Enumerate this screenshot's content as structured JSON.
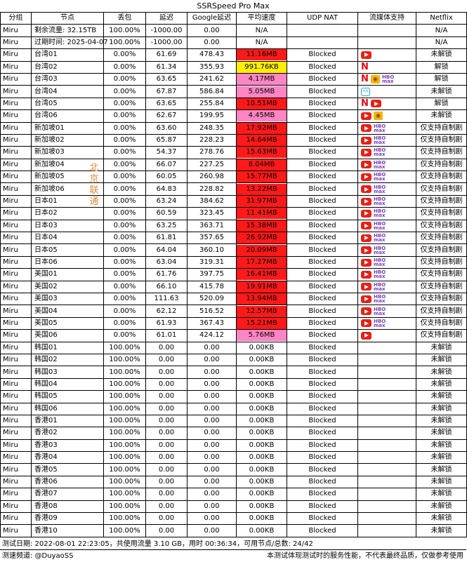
{
  "title": "SSRSpeed Pro Max",
  "headers": [
    "分组",
    "节点",
    "丢包",
    "延迟",
    "Google延迟",
    "平均速度",
    "UDP NAT",
    "流媒体支持",
    "Netflix"
  ],
  "isp_label": "北京联通",
  "colors": {
    "red": "#ff1a1a",
    "pink": "#ff85c4",
    "yellow": "#ffee00",
    "white": "#ffffff"
  },
  "rows": [
    {
      "group": "Miru",
      "node": "剩余流量: 32.15TB",
      "loss": "100.00%",
      "delay": "-1000.00",
      "google": "0.00",
      "speed": "N/A",
      "speed_color": "white",
      "udp": "",
      "media": [],
      "netflix": "N/A"
    },
    {
      "group": "Miru",
      "node": "过期时间: 2025-04-07",
      "loss": "100.00%",
      "delay": "-1000.00",
      "google": "0.00",
      "speed": "N/A",
      "speed_color": "white",
      "udp": "",
      "media": [],
      "netflix": "N/A"
    },
    {
      "group": "Miru",
      "node": "台湾01",
      "loss": "0.00%",
      "delay": "61.69",
      "google": "478.43",
      "speed": "11.16MB",
      "speed_color": "red",
      "udp": "Blocked",
      "media": [
        "youtube-icon"
      ],
      "netflix": "未解锁"
    },
    {
      "group": "Miru",
      "node": "台湾02",
      "loss": "0.00%",
      "delay": "61.34",
      "google": "355.93",
      "speed": "991.76KB",
      "speed_color": "yellow",
      "udp": "Blocked",
      "media": [
        "netflix-icon"
      ],
      "netflix": "解锁"
    },
    {
      "group": "Miru",
      "node": "台湾03",
      "loss": "0.00%",
      "delay": "63.65",
      "google": "241.62",
      "speed": "4.17MB",
      "speed_color": "pink",
      "udp": "Blocked",
      "media": [
        "netflix-icon",
        "abema-icon",
        "hbo-max-icon"
      ],
      "netflix": "解锁"
    },
    {
      "group": "Miru",
      "node": "台湾04",
      "loss": "0.00%",
      "delay": "67.87",
      "google": "586.84",
      "speed": "5.05MB",
      "speed_color": "pink",
      "udp": "Blocked",
      "media": [
        "bilibili-icon"
      ],
      "netflix": "未解锁"
    },
    {
      "group": "Miru",
      "node": "台湾05",
      "loss": "0.00%",
      "delay": "63.65",
      "google": "255.84",
      "speed": "10.51MB",
      "speed_color": "red",
      "udp": "Blocked",
      "media": [
        "netflix-icon",
        "youtube-icon"
      ],
      "netflix": "解锁"
    },
    {
      "group": "Miru",
      "node": "台湾06",
      "loss": "0.00%",
      "delay": "62.67",
      "google": "199.95",
      "speed": "4.45MB",
      "speed_color": "pink",
      "udp": "Blocked",
      "media": [
        "youtube-icon",
        "abema-icon"
      ],
      "netflix": "未解锁"
    },
    {
      "group": "Miru",
      "node": "新加坡01",
      "loss": "0.00%",
      "delay": "63.60",
      "google": "248.35",
      "speed": "17.92MB",
      "speed_color": "red",
      "udp": "Blocked",
      "media": [
        "youtube-icon",
        "hbo-max-icon"
      ],
      "netflix": "仅支持自制剧"
    },
    {
      "group": "Miru",
      "node": "新加坡02",
      "loss": "0.00%",
      "delay": "65.87",
      "google": "228.23",
      "speed": "14.64MB",
      "speed_color": "red",
      "udp": "Blocked",
      "media": [
        "youtube-icon",
        "hbo-max-icon"
      ],
      "netflix": "仅支持自制剧"
    },
    {
      "group": "Miru",
      "node": "新加坡03",
      "loss": "0.00%",
      "delay": "54.37",
      "google": "278.76",
      "speed": "15.63MB",
      "speed_color": "red",
      "udp": "Blocked",
      "media": [
        "youtube-icon",
        "hbo-max-icon"
      ],
      "netflix": "仅支持自制剧"
    },
    {
      "group": "Miru",
      "node": "新加坡04",
      "loss": "0.00%",
      "delay": "66.07",
      "google": "227.25",
      "speed": "8.04MB",
      "speed_color": "red",
      "udp": "Blocked",
      "media": [
        "youtube-icon",
        "hbo-max-icon"
      ],
      "netflix": "仅支持自制剧"
    },
    {
      "group": "Miru",
      "node": "新加坡05",
      "loss": "0.00%",
      "delay": "60.05",
      "google": "260.98",
      "speed": "15.77MB",
      "speed_color": "red",
      "udp": "Blocked",
      "media": [
        "youtube-icon",
        "hbo-max-icon"
      ],
      "netflix": "仅支持自制剧"
    },
    {
      "group": "Miru",
      "node": "新加坡06",
      "loss": "0.00%",
      "delay": "64.83",
      "google": "228.82",
      "speed": "13.22MB",
      "speed_color": "red",
      "udp": "Blocked",
      "media": [
        "youtube-icon",
        "hbo-max-icon"
      ],
      "netflix": "仅支持自制剧"
    },
    {
      "group": "Miru",
      "node": "日本01",
      "loss": "0.00%",
      "delay": "63.24",
      "google": "384.62",
      "speed": "31.97MB",
      "speed_color": "red",
      "udp": "Blocked",
      "media": [
        "youtube-icon",
        "hbo-max-icon"
      ],
      "netflix": "仅支持自制剧"
    },
    {
      "group": "Miru",
      "node": "日本02",
      "loss": "0.00%",
      "delay": "60.59",
      "google": "323.45",
      "speed": "11.41MB",
      "speed_color": "red",
      "udp": "Blocked",
      "media": [
        "youtube-icon",
        "hbo-max-icon"
      ],
      "netflix": "仅支持自制剧"
    },
    {
      "group": "Miru",
      "node": "日本03",
      "loss": "0.00%",
      "delay": "63.25",
      "google": "363.71",
      "speed": "15.38MB",
      "speed_color": "red",
      "udp": "Blocked",
      "media": [
        "youtube-icon",
        "hbo-max-icon"
      ],
      "netflix": "仅支持自制剧"
    },
    {
      "group": "Miru",
      "node": "日本04",
      "loss": "0.00%",
      "delay": "61.81",
      "google": "357.65",
      "speed": "26.92MB",
      "speed_color": "red",
      "udp": "Blocked",
      "media": [
        "youtube-icon",
        "hbo-max-icon"
      ],
      "netflix": "仅支持自制剧"
    },
    {
      "group": "Miru",
      "node": "日本05",
      "loss": "0.00%",
      "delay": "64.04",
      "google": "360.10",
      "speed": "20.09MB",
      "speed_color": "red",
      "udp": "Blocked",
      "media": [
        "youtube-icon",
        "hbo-max-icon"
      ],
      "netflix": "仅支持自制剧"
    },
    {
      "group": "Miru",
      "node": "日本06",
      "loss": "0.00%",
      "delay": "63.04",
      "google": "319.31",
      "speed": "17.27MB",
      "speed_color": "red",
      "udp": "Blocked",
      "media": [
        "youtube-icon",
        "hbo-max-icon"
      ],
      "netflix": "仅支持自制剧"
    },
    {
      "group": "Miru",
      "node": "美国01",
      "loss": "0.00%",
      "delay": "61.76",
      "google": "397.75",
      "speed": "16.41MB",
      "speed_color": "red",
      "udp": "Blocked",
      "media": [
        "youtube-icon",
        "hbo-max-icon"
      ],
      "netflix": "仅支持自制剧"
    },
    {
      "group": "Miru",
      "node": "美国02",
      "loss": "0.00%",
      "delay": "66.10",
      "google": "415.78",
      "speed": "19.91MB",
      "speed_color": "red",
      "udp": "Blocked",
      "media": [
        "youtube-icon",
        "hbo-max-icon"
      ],
      "netflix": "仅支持自制剧"
    },
    {
      "group": "Miru",
      "node": "美国03",
      "loss": "0.00%",
      "delay": "111.63",
      "google": "520.09",
      "speed": "13.94MB",
      "speed_color": "red",
      "udp": "Blocked",
      "media": [
        "youtube-icon",
        "hbo-max-icon"
      ],
      "netflix": "仅支持自制剧"
    },
    {
      "group": "Miru",
      "node": "美国04",
      "loss": "0.00%",
      "delay": "62.12",
      "google": "516.52",
      "speed": "12.57MB",
      "speed_color": "red",
      "udp": "Blocked",
      "media": [
        "youtube-icon",
        "hbo-max-icon"
      ],
      "netflix": "仅支持自制剧"
    },
    {
      "group": "Miru",
      "node": "美国05",
      "loss": "0.00%",
      "delay": "61.93",
      "google": "367.43",
      "speed": "15.21MB",
      "speed_color": "red",
      "udp": "Blocked",
      "media": [
        "youtube-icon",
        "hbo-max-icon"
      ],
      "netflix": "仅支持自制剧"
    },
    {
      "group": "Miru",
      "node": "美国06",
      "loss": "0.00%",
      "delay": "61.01",
      "google": "424.12",
      "speed": "5.76MB",
      "speed_color": "pink",
      "udp": "Blocked",
      "media": [
        "youtube-icon"
      ],
      "netflix": "仅支持自制剧"
    },
    {
      "group": "Miru",
      "node": "韩国01",
      "loss": "100.00%",
      "delay": "0.00",
      "google": "0.00",
      "speed": "0.00KB",
      "speed_color": "white",
      "udp": "Blocked",
      "media": [],
      "netflix": "未解锁"
    },
    {
      "group": "Miru",
      "node": "韩国02",
      "loss": "100.00%",
      "delay": "0.00",
      "google": "0.00",
      "speed": "0.00KB",
      "speed_color": "white",
      "udp": "Blocked",
      "media": [],
      "netflix": "未解锁"
    },
    {
      "group": "Miru",
      "node": "韩国03",
      "loss": "100.00%",
      "delay": "0.00",
      "google": "0.00",
      "speed": "0.00KB",
      "speed_color": "white",
      "udp": "Blocked",
      "media": [],
      "netflix": "未解锁"
    },
    {
      "group": "Miru",
      "node": "韩国04",
      "loss": "100.00%",
      "delay": "0.00",
      "google": "0.00",
      "speed": "0.00KB",
      "speed_color": "white",
      "udp": "Blocked",
      "media": [],
      "netflix": "未解锁"
    },
    {
      "group": "Miru",
      "node": "韩国05",
      "loss": "100.00%",
      "delay": "0.00",
      "google": "0.00",
      "speed": "0.00KB",
      "speed_color": "white",
      "udp": "Blocked",
      "media": [],
      "netflix": "未解锁"
    },
    {
      "group": "Miru",
      "node": "韩国06",
      "loss": "100.00%",
      "delay": "0.00",
      "google": "0.00",
      "speed": "0.00KB",
      "speed_color": "white",
      "udp": "Blocked",
      "media": [],
      "netflix": "未解锁"
    },
    {
      "group": "Miru",
      "node": "香港01",
      "loss": "100.00%",
      "delay": "0.00",
      "google": "0.00",
      "speed": "0.00KB",
      "speed_color": "white",
      "udp": "Blocked",
      "media": [],
      "netflix": "未解锁"
    },
    {
      "group": "Miru",
      "node": "香港02",
      "loss": "100.00%",
      "delay": "0.00",
      "google": "0.00",
      "speed": "0.00KB",
      "speed_color": "white",
      "udp": "Blocked",
      "media": [],
      "netflix": "未解锁"
    },
    {
      "group": "Miru",
      "node": "香港03",
      "loss": "100.00%",
      "delay": "0.00",
      "google": "0.00",
      "speed": "0.00KB",
      "speed_color": "white",
      "udp": "Blocked",
      "media": [],
      "netflix": "未解锁"
    },
    {
      "group": "Miru",
      "node": "香港04",
      "loss": "100.00%",
      "delay": "0.00",
      "google": "0.00",
      "speed": "0.00KB",
      "speed_color": "white",
      "udp": "Blocked",
      "media": [],
      "netflix": "未解锁"
    },
    {
      "group": "Miru",
      "node": "香港05",
      "loss": "100.00%",
      "delay": "0.00",
      "google": "0.00",
      "speed": "0.00KB",
      "speed_color": "white",
      "udp": "Blocked",
      "media": [],
      "netflix": "未解锁"
    },
    {
      "group": "Miru",
      "node": "香港06",
      "loss": "100.00%",
      "delay": "0.00",
      "google": "0.00",
      "speed": "0.00KB",
      "speed_color": "white",
      "udp": "Blocked",
      "media": [],
      "netflix": "未解锁"
    },
    {
      "group": "Miru",
      "node": "香港07",
      "loss": "100.00%",
      "delay": "0.00",
      "google": "0.00",
      "speed": "0.00KB",
      "speed_color": "white",
      "udp": "Blocked",
      "media": [],
      "netflix": "未解锁"
    },
    {
      "group": "Miru",
      "node": "香港08",
      "loss": "100.00%",
      "delay": "0.00",
      "google": "0.00",
      "speed": "0.00KB",
      "speed_color": "white",
      "udp": "Blocked",
      "media": [],
      "netflix": "未解锁"
    },
    {
      "group": "Miru",
      "node": "香港09",
      "loss": "100.00%",
      "delay": "0.00",
      "google": "0.00",
      "speed": "0.00KB",
      "speed_color": "white",
      "udp": "Blocked",
      "media": [],
      "netflix": "未解锁"
    },
    {
      "group": "Miru",
      "node": "香港10",
      "loss": "100.00%",
      "delay": "0.00",
      "google": "0.00",
      "speed": "0.00KB",
      "speed_color": "white",
      "udp": "Blocked",
      "media": [],
      "netflix": "未解锁"
    }
  ],
  "footer": {
    "test_info": "测试日期: 2022-08-01 22:23:05，共使用流量 3.10 GB，用时 00:36:34，可用节点/总数: 24/42",
    "channel": "测速频道: @DuyaoSS",
    "disclaimer": "本测试体现测试时的服务性能，不代表最终品质，仅做参考使用"
  }
}
